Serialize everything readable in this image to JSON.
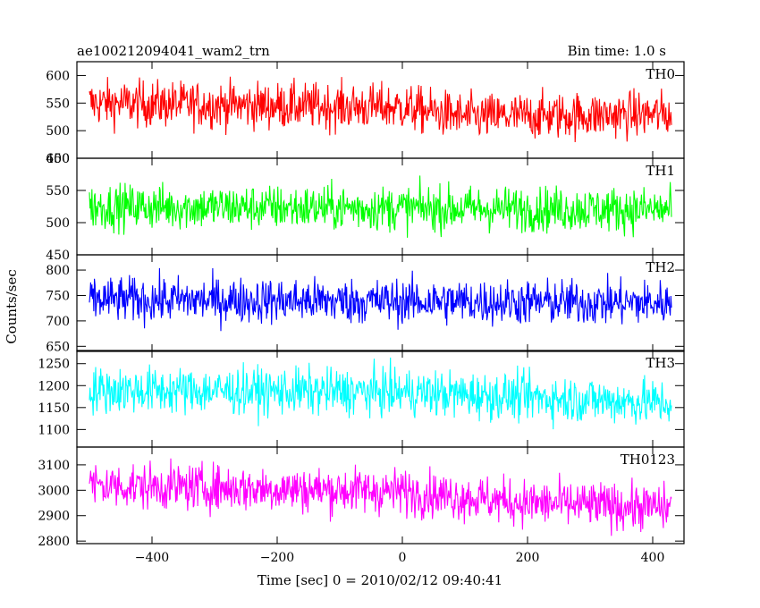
{
  "header": {
    "title": "ae100212094041_wam2_trn",
    "bin_time": "Bin time: 1.0 s"
  },
  "chart_data": {
    "type": "line",
    "xlabel": "Time [sec] 0 = 2010/02/12 09:40:41",
    "ylabel": "Counts/sec",
    "xlim": [
      -520,
      450
    ],
    "x_range": [
      -500,
      430
    ],
    "x_ticks": [
      -400,
      -200,
      0,
      200,
      400
    ],
    "x_tick_labels": [
      "−400",
      "−200",
      "0",
      "200",
      "400"
    ],
    "grid": false,
    "panels": [
      {
        "name": "TH0",
        "color": "#ff0000",
        "ylim": [
          450,
          625
        ],
        "yticks": [
          450,
          500,
          550,
          600
        ],
        "ytick_labels": [
          "450",
          "500",
          "550",
          "600"
        ],
        "trend": [
          [
            -500,
            550
          ],
          [
            0,
            542
          ],
          [
            100,
            525
          ],
          [
            430,
            530
          ]
        ],
        "amp": 30
      },
      {
        "name": "TH1",
        "color": "#00ff00",
        "ylim": [
          450,
          600
        ],
        "yticks": [
          450,
          500,
          550,
          600
        ],
        "ytick_labels": [
          "450",
          "500",
          "550",
          "600"
        ],
        "trend": [
          [
            -500,
            525
          ],
          [
            430,
            520
          ]
        ],
        "amp": 25
      },
      {
        "name": "TH2",
        "color": "#0000ff",
        "ylim": [
          640,
          830
        ],
        "yticks": [
          650,
          700,
          750,
          800
        ],
        "ytick_labels": [
          "650",
          "700",
          "750",
          "800"
        ],
        "trend": [
          [
            -500,
            742
          ],
          [
            430,
            735
          ]
        ],
        "amp": 32
      },
      {
        "name": "TH3",
        "color": "#00ffff",
        "ylim": [
          1060,
          1280
        ],
        "yticks": [
          1100,
          1150,
          1200,
          1250
        ],
        "ytick_labels": [
          "1100",
          "1150",
          "1200",
          "1250"
        ],
        "trend": [
          [
            -500,
            1190
          ],
          [
            0,
            1185
          ],
          [
            430,
            1160
          ]
        ],
        "amp": 38
      },
      {
        "name": "TH0123",
        "color": "#ff00ff",
        "ylim": [
          2790,
          3170
        ],
        "yticks": [
          2800,
          2900,
          3000,
          3100
        ],
        "ytick_labels": [
          "2800",
          "2900",
          "3000",
          "3100"
        ],
        "trend": [
          [
            -500,
            3020
          ],
          [
            0,
            2995
          ],
          [
            200,
            2950
          ],
          [
            430,
            2930
          ]
        ],
        "amp": 65
      }
    ]
  }
}
